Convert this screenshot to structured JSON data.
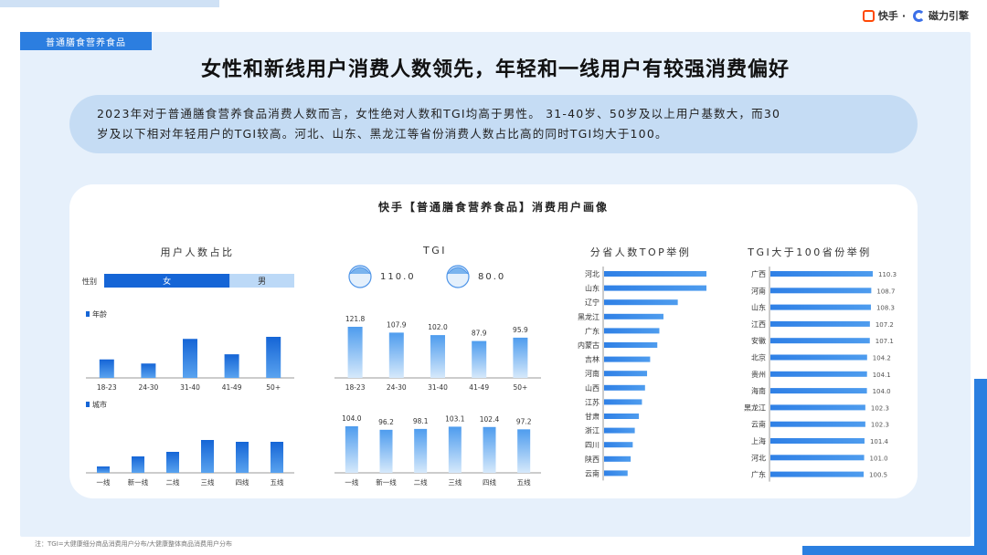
{
  "header": {
    "tag": "普通膳食营养食品",
    "brand": {
      "kuaishou": "快手",
      "dot": "·",
      "cili": "磁力引擎"
    },
    "title": "女性和新线用户消费人数领先，年轻和一线用户有较强消费偏好",
    "summary_line1": "2023年对于普通膳食营养食品消费人数而言，女性绝对人数和TGI均高于男性。 31-40岁、50岁及以上用户基数大，而30",
    "summary_line2": "岁及以下相对年轻用户的TGI较高。河北、山东、黑龙江等省份消费人数占比高的同时TGI均大于100。"
  },
  "card": {
    "title": "快手【普通膳食营养食品】消费用户画像"
  },
  "sections": {
    "share": "用户人数占比",
    "tgi": "TGI",
    "top_provinces": "分省人数TOP举例",
    "tgi_provinces": "TGI大于100省份举例"
  },
  "colors": {
    "accent": "#2c7ee0",
    "bar_top": "#1565d6",
    "bar_light": "#63a8f0",
    "gender_male": "#bcd9f7"
  },
  "chart_data": [
    {
      "id": "gender_share",
      "type": "bar",
      "label": "性别",
      "categories": [
        "女",
        "男"
      ],
      "values": [
        0.66,
        0.34
      ]
    },
    {
      "id": "age_share",
      "type": "bar",
      "legend": "年龄",
      "categories": [
        "18-23",
        "24-30",
        "31-40",
        "41-49",
        "50+"
      ],
      "values": [
        18,
        14,
        38,
        23,
        40
      ]
    },
    {
      "id": "city_share",
      "type": "bar",
      "legend": "城市",
      "categories": [
        "一线",
        "新一线",
        "二线",
        "三线",
        "四线",
        "五线"
      ],
      "values": [
        7,
        18,
        23,
        36,
        34,
        34
      ]
    },
    {
      "id": "gender_tgi",
      "type": "table",
      "items": [
        {
          "icon": "female-face-icon",
          "value": "110.0"
        },
        {
          "icon": "male-face-icon",
          "value": "80.0"
        }
      ]
    },
    {
      "id": "age_tgi",
      "type": "bar",
      "categories": [
        "18-23",
        "24-30",
        "31-40",
        "41-49",
        "50+"
      ],
      "values": [
        121.8,
        107.9,
        102.0,
        87.9,
        95.9
      ],
      "labels": [
        "121.8",
        "107.9",
        "102.0",
        "87.9",
        "95.9"
      ]
    },
    {
      "id": "city_tgi",
      "type": "bar",
      "categories": [
        "一线",
        "新一线",
        "二线",
        "三线",
        "四线",
        "五线"
      ],
      "values": [
        104.0,
        96.2,
        98.1,
        103.1,
        102.4,
        97.2
      ],
      "labels": [
        "104.0",
        "96.2",
        "98.1",
        "103.1",
        "102.4",
        "97.2"
      ]
    },
    {
      "id": "province_top",
      "type": "bar",
      "orientation": "horizontal",
      "categories": [
        "河北",
        "山东",
        "辽宁",
        "黑龙江",
        "广东",
        "内蒙古",
        "吉林",
        "河南",
        "山西",
        "江苏",
        "甘肃",
        "浙江",
        "四川",
        "陕西",
        "云南"
      ],
      "values": [
        100,
        100,
        72,
        58,
        54,
        52,
        45,
        42,
        40,
        37,
        34,
        30,
        28,
        26,
        23
      ]
    },
    {
      "id": "province_tgi",
      "type": "bar",
      "orientation": "horizontal",
      "categories": [
        "广西",
        "河南",
        "山东",
        "江西",
        "安徽",
        "北京",
        "贵州",
        "海南",
        "黑龙江",
        "云南",
        "上海",
        "河北",
        "广东"
      ],
      "values": [
        110.3,
        108.7,
        108.3,
        107.2,
        107.1,
        104.2,
        104.1,
        104.0,
        102.3,
        102.3,
        101.4,
        101.0,
        100.5
      ],
      "labels": [
        "110.3",
        "108.7",
        "108.3",
        "107.2",
        "107.1",
        "104.2",
        "104.1",
        "104.0",
        "102.3",
        "102.3",
        "101.4",
        "101.0",
        "100.5"
      ]
    }
  ],
  "footnote": "注：TGI=大健康细分商品消费用户分布/大健康整体商品消费用户分布"
}
